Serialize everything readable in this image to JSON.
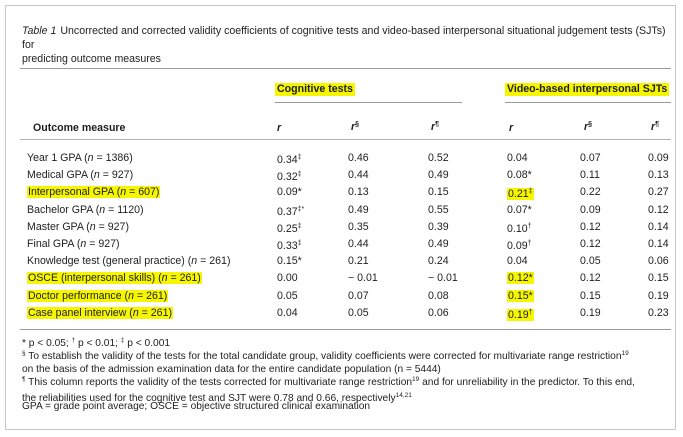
{
  "caption": {
    "label": "Table 1",
    "line1": "Uncorrected and corrected validity coefficients of cognitive tests and video-based interpersonal situational judgement tests (SJTs) for",
    "line2": "predicting outcome measures"
  },
  "header": {
    "group_cognitive": "Cognitive tests",
    "group_video": "Video-based interpersonal SJTs",
    "outcome_label": "Outcome measure",
    "col_r": "r",
    "sup_section": "§",
    "sup_para": "¶"
  },
  "rows": [
    {
      "measure": "Year 1 GPA (",
      "n_italic": "n",
      "n_rest": " = 1386)",
      "highlight": false,
      "v0": "0.34",
      "s0": "‡",
      "v1": "0.46",
      "v2": "0.52",
      "v3": "0.04",
      "s3": "",
      "v4": "0.07",
      "v5": "0.09"
    },
    {
      "measure": "Medical GPA (",
      "n_italic": "n",
      "n_rest": " = 927)",
      "highlight": false,
      "v0": "0.32",
      "s0": "‡",
      "v1": "0.44",
      "v2": "0.49",
      "v3": "0.08*",
      "s3": "",
      "v4": "0.11",
      "v5": "0.13"
    },
    {
      "measure": "Interpersonal GPA (",
      "n_italic": "n",
      "n_rest": " = 607)",
      "highlight": true,
      "v0": "0.09*",
      "s0": "",
      "v1": "0.13",
      "v2": "0.15",
      "v3": "0.21",
      "s3": "‡",
      "v4": "0.22",
      "v5": "0.27"
    },
    {
      "measure": "Bachelor GPA (",
      "n_italic": "n",
      "n_rest": " = 1120)",
      "highlight": false,
      "v0": "0.37",
      "s0": "‡*",
      "v1": "0.49",
      "v2": "0.55",
      "v3": "0.07*",
      "s3": "",
      "v4": "0.09",
      "v5": "0.12"
    },
    {
      "measure": "Master GPA (",
      "n_italic": "n",
      "n_rest": " = 927)",
      "highlight": false,
      "v0": "0.25",
      "s0": "‡",
      "v1": "0.35",
      "v2": "0.39",
      "v3": "0.10",
      "s3": "†",
      "v4": "0.12",
      "v5": "0.14"
    },
    {
      "measure": "Final GPA (",
      "n_italic": "n",
      "n_rest": " = 927)",
      "highlight": false,
      "v0": "0.33",
      "s0": "‡",
      "v1": "0.44",
      "v2": "0.49",
      "v3": "0.09",
      "s3": "†",
      "v4": "0.12",
      "v5": "0.14"
    },
    {
      "measure": "Knowledge test (general practice) (",
      "n_italic": "n",
      "n_rest": " = 261)",
      "highlight": false,
      "v0": "0.15*",
      "s0": "",
      "v1": "0.21",
      "v2": "0.24",
      "v3": "0.04",
      "s3": "",
      "v4": "0.05",
      "v5": "0.06"
    },
    {
      "measure": "OSCE (interpersonal skills) (",
      "n_italic": "n",
      "n_rest": " = 261)",
      "highlight": true,
      "v0": "0.00",
      "s0": "",
      "v1": "− 0.01",
      "v2": "− 0.01",
      "v3": "0.12*",
      "s3": "",
      "v4": "0.12",
      "v5": "0.15"
    },
    {
      "measure": "Doctor performance (",
      "n_italic": "n",
      "n_rest": " = 261)",
      "highlight": true,
      "v0": "0.05",
      "s0": "",
      "v1": "0.07",
      "v2": "0.08",
      "v3": "0.15*",
      "s3": "",
      "v4": "0.15",
      "v5": "0.19"
    },
    {
      "measure": "Case panel interview (",
      "n_italic": "n",
      "n_rest": " = 261)",
      "highlight": true,
      "v0": "0.04",
      "s0": "",
      "v1": "0.05",
      "v2": "0.06",
      "v3": "0.19",
      "s3": "†",
      "v4": "0.19",
      "v5": "0.23"
    }
  ],
  "footnotes": {
    "f1_a": "* p < 0.05; ",
    "f1_dag": "†",
    "f1_b": " p < 0.01; ",
    "f1_ddag": "‡",
    "f1_c": " p < 0.001",
    "f2_sym": "§",
    "f2_a": " To establish the validity of the tests for the total candidate group, validity coefficients were corrected for multivariate range restriction",
    "f2_ref": "19",
    "f2_b": "on the basis of the admission examination data for the entire candidate population (n = 5444)",
    "f3_sym": "¶",
    "f3_a": " This column reports the validity of the tests corrected for multivariate range restriction",
    "f3_ref": "19",
    "f3_b": " and for unreliability in the predictor. To this end,",
    "f3_c": "the reliabilities used for the cognitive test and SJT were 0.78 and 0.66, respectively",
    "f3_ref2": "14,21",
    "f4": "GPA = grade point average; OSCE = objective structured clinical examination"
  },
  "colors": {
    "highlight": "#f6f600",
    "rule": "#9a9a9a"
  }
}
